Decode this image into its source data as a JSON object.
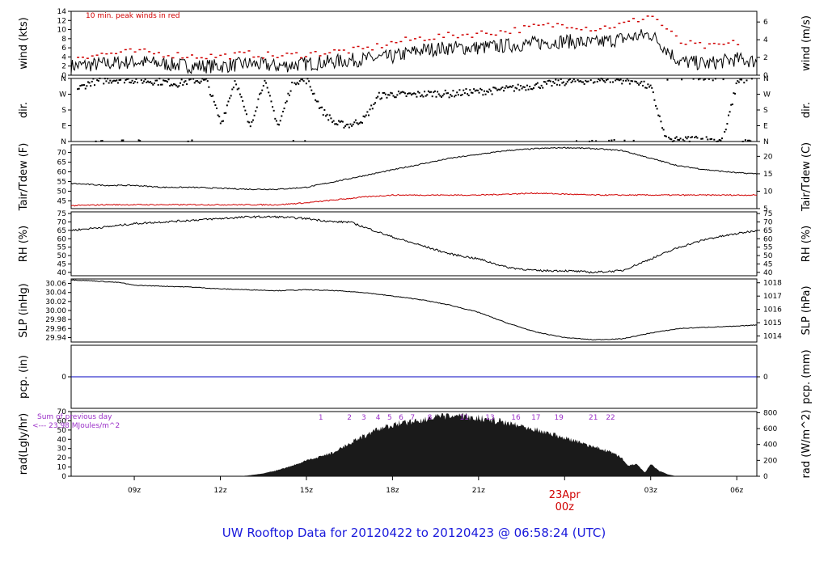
{
  "chart_data": {
    "title": "UW Rooftop Data for 20120422  to  20120423 @ 06:58:24  (UTC)",
    "x_axis": {
      "tick_labels": [
        "09z",
        "12z",
        "15z",
        "18z",
        "21z",
        "00z",
        "03z",
        "06z"
      ],
      "tick_hours": [
        9,
        12,
        15,
        18,
        21,
        24,
        27,
        30
      ],
      "range_hours": [
        6.8,
        30.7
      ],
      "date_label": "23Apr",
      "date_label_hour": 24
    },
    "panels": [
      {
        "id": "wind",
        "type": "line",
        "left_label": "wind (kts)",
        "right_label": "wind (m/s)",
        "left_ticks": [
          0,
          2,
          4,
          6,
          8,
          10,
          12,
          14
        ],
        "right_ticks": [
          0,
          2,
          4,
          6
        ],
        "ylim": [
          0,
          14
        ],
        "annotation": "10 min. peak winds in red",
        "series": [
          {
            "name": "wind",
            "color": "#000000",
            "x": [
              6.8,
              8,
              9,
              10,
              11,
              12,
              13,
              14,
              15,
              16,
              17,
              18,
              19,
              20,
              21,
              22,
              23,
              24,
              25,
              26,
              27,
              28,
              29,
              30,
              30.7
            ],
            "values": [
              2,
              2.5,
              3,
              2.5,
              2,
              2,
              2.5,
              2,
              2.5,
              3,
              3.5,
              4,
              5.5,
              6,
              6,
              6.5,
              7,
              7.5,
              7,
              8,
              9,
              3,
              2.5,
              3.5,
              3
            ]
          },
          {
            "name": "peak",
            "color": "#d00000",
            "style": "dots",
            "x": [
              7,
              8,
              9,
              10,
              11,
              12,
              13,
              14,
              15,
              16,
              17,
              18,
              19,
              20,
              21,
              22,
              23,
              24,
              25,
              26,
              27,
              28,
              29,
              30
            ],
            "values": [
              4,
              4.5,
              5,
              4.5,
              4,
              4,
              4.5,
              4,
              4.5,
              5,
              5.5,
              7,
              8,
              8.5,
              9,
              9.5,
              10.5,
              11,
              10,
              11,
              13,
              7,
              6,
              7
            ]
          }
        ]
      },
      {
        "id": "dir",
        "type": "scatter",
        "left_label": "dir.",
        "right_label": "dir.",
        "left_ticks": [
          "N",
          "E",
          "S",
          "W",
          "N"
        ],
        "right_ticks": [
          "N",
          "E",
          "S",
          "W",
          "N"
        ],
        "ylim": [
          0,
          360
        ],
        "series": [
          {
            "name": "dir",
            "color": "#000000",
            "x": [
              7,
              7.5,
              8,
              8.5,
              9,
              9.5,
              10,
              10.5,
              11,
              11.5,
              12,
              12.5,
              13,
              13.5,
              14,
              14.5,
              15,
              15.5,
              16,
              16.5,
              17,
              17.5,
              18,
              18.5,
              19,
              19.5,
              20,
              20.5,
              21,
              21.5,
              22,
              22.5,
              23,
              23.5,
              24,
              24.5,
              25,
              25.5,
              26,
              26.5,
              27,
              27.5,
              28,
              28.5,
              29,
              29.5,
              30,
              30.5
            ],
            "values": [
              300,
              340,
              350,
              355,
              350,
              345,
              340,
              330,
              350,
              345,
              100,
              355,
              80,
              350,
              85,
              345,
              350,
              180,
              100,
              95,
              130,
              260,
              270,
              265,
              270,
              275,
              270,
              280,
              285,
              290,
              300,
              310,
              320,
              330,
              340,
              345,
              350,
              355,
              350,
              345,
              300,
              10,
              5,
              15,
              10,
              5,
              350,
              355
            ]
          }
        ]
      },
      {
        "id": "tair",
        "type": "line",
        "left_label": "Tair/Tdew (F)",
        "right_label": "Tair/Tdew (C)",
        "left_ticks": [
          45,
          50,
          55,
          60,
          65,
          70
        ],
        "right_ticks": [
          5,
          10,
          15,
          20
        ],
        "ylim": [
          41,
          74
        ],
        "series": [
          {
            "name": "Tair",
            "color": "#000000",
            "x": [
              6.8,
              8,
              9,
              10,
              11,
              12,
              13,
              14,
              15,
              16,
              17,
              18,
              19,
              20,
              21,
              22,
              23,
              24,
              25,
              26,
              27,
              28,
              29,
              30,
              30.7
            ],
            "values": [
              54,
              53,
              53,
              52,
              52,
              51.5,
              51,
              51,
              52,
              55,
              58,
              61,
              64,
              67,
              69,
              71,
              72,
              72.5,
              72,
              71,
              67,
              63,
              61,
              59.5,
              59
            ]
          },
          {
            "name": "Tdew",
            "color": "#d00000",
            "x": [
              6.8,
              8,
              9,
              10,
              11,
              12,
              13,
              14,
              15,
              16,
              17,
              18,
              19,
              20,
              21,
              22,
              23,
              24,
              25,
              26,
              27,
              28,
              29,
              30,
              30.7
            ],
            "values": [
              42.5,
              43,
              43,
              43,
              43,
              43,
              43,
              43,
              44,
              45.5,
              47,
              48,
              48,
              48,
              48,
              48.5,
              49,
              48.5,
              48,
              48,
              48,
              48,
              48,
              48,
              48
            ]
          }
        ]
      },
      {
        "id": "rh",
        "type": "line",
        "left_label": "RH (%)",
        "right_label": "RH (%)",
        "left_ticks": [
          40,
          45,
          50,
          55,
          60,
          65,
          70,
          75
        ],
        "right_ticks": [
          40,
          45,
          50,
          55,
          60,
          65,
          70,
          75
        ],
        "ylim": [
          38,
          76
        ],
        "series": [
          {
            "name": "RH",
            "color": "#000000",
            "x": [
              6.8,
              8,
              9,
              10,
              11,
              12,
              13,
              14,
              15,
              16,
              16.5,
              17,
              18,
              19,
              20,
              21,
              22,
              23,
              24,
              25,
              26,
              27,
              28,
              29,
              30,
              30.7
            ],
            "values": [
              65,
              67,
              69,
              70,
              71,
              72,
              73,
              73,
              72,
              70,
              70,
              67,
              61,
              56,
              51,
              48,
              43,
              41,
              41,
              40,
              41,
              48,
              55,
              60,
              63,
              65
            ]
          }
        ]
      },
      {
        "id": "slp",
        "type": "line",
        "left_label": "SLP (inHg)",
        "right_label": "SLP (hPa)",
        "left_ticks": [
          "29.94",
          "29.96",
          "29.98",
          "30.00",
          "30.02",
          "30.04",
          "30.06"
        ],
        "right_ticks": [
          1014,
          1015,
          1016,
          1017,
          1018
        ],
        "ylim": [
          29.93,
          30.07
        ],
        "series": [
          {
            "name": "SLP",
            "color": "#000000",
            "x": [
              6.8,
              7.5,
              8.5,
              9,
              10,
              11,
              12,
              13,
              14,
              15,
              16,
              17,
              18,
              19,
              20,
              21,
              22,
              23,
              24,
              25,
              26,
              27,
              28,
              29,
              30,
              30.7
            ],
            "values": [
              30.068,
              30.066,
              30.062,
              30.056,
              30.054,
              30.052,
              30.048,
              30.046,
              30.044,
              30.046,
              30.044,
              30.04,
              30.032,
              30.024,
              30.012,
              29.996,
              29.972,
              29.952,
              29.94,
              29.935,
              29.937,
              29.95,
              29.96,
              29.963,
              29.965,
              29.968
            ]
          }
        ]
      },
      {
        "id": "pcp",
        "type": "line",
        "left_label": "pcp. (in)",
        "right_label": "pcp. (mm)",
        "left_ticks": [
          0
        ],
        "right_ticks": [
          0
        ],
        "ylim": [
          -1,
          1
        ],
        "series": [
          {
            "name": "pcp",
            "color": "#0000c0",
            "x": [
              6.8,
              30.7
            ],
            "values": [
              0,
              0
            ]
          }
        ]
      },
      {
        "id": "rad",
        "type": "area",
        "left_label": "rad(Lgly/hr)",
        "right_label": "rad (W/m^2)",
        "left_ticks": [
          0,
          10,
          20,
          30,
          40,
          50,
          60,
          70
        ],
        "right_ticks": [
          0,
          200,
          400,
          600,
          800
        ],
        "ylim": [
          0,
          70
        ],
        "annotation_lines": [
          "Sum of previous day",
          "<--- 23.98 MJoules/m^2"
        ],
        "hour_labels": [
          "1",
          "2",
          "3",
          "4",
          "5",
          "6",
          "7",
          "8",
          "11",
          "13",
          "16",
          "17",
          "19",
          "21",
          "22"
        ],
        "hour_label_hours": [
          15.5,
          16.5,
          17,
          17.5,
          17.9,
          18.3,
          18.7,
          19.3,
          20.5,
          21.4,
          22.3,
          23.0,
          23.8,
          25.0,
          25.6
        ],
        "series": [
          {
            "name": "rad",
            "color": "#1a1a1a",
            "x": [
              12.7,
              13,
              13.5,
              14,
              14.5,
              15,
              15.5,
              16,
              16.3,
              16.6,
              17,
              17.3,
              17.6,
              18,
              18.4,
              18.8,
              19.2,
              19.6,
              20,
              20.4,
              20.8,
              21.2,
              21.6,
              22,
              22.4,
              22.8,
              23.2,
              23.6,
              24,
              24.4,
              24.8,
              25.2,
              25.6,
              26,
              26.2,
              26.5,
              26.8,
              27,
              27.3,
              27.6,
              27.9
            ],
            "values": [
              0,
              1,
              3,
              7,
              12,
              18,
              23,
              28,
              34,
              40,
              46,
              51,
              55,
              59,
              62,
              64,
              66,
              68,
              69,
              69,
              68,
              66,
              64,
              62,
              59,
              56,
              52,
              48,
              44,
              40,
              36,
              32,
              28,
              21,
              12,
              14,
              4,
              14,
              6,
              2,
              0
            ]
          }
        ]
      }
    ]
  }
}
